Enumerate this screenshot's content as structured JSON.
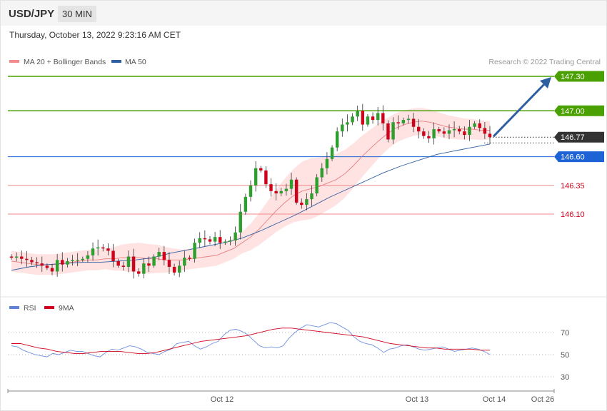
{
  "header": {
    "pair": "USD/JPY",
    "timeframe": "30 MIN",
    "datetime": "Thursday, October 13, 2022 9:23:16 AM CET"
  },
  "legend": {
    "ma20_label": "MA 20 + Bollinger Bands",
    "ma50_label": "MA 50",
    "copyright": "Research © 2022 Trading Central"
  },
  "rsi_legend": {
    "rsi_label": "RSI",
    "ma9_label": "9MA"
  },
  "colors": {
    "bull": "#2e9e2e",
    "bear": "#d0021b",
    "bands_fill": "#ffd6d6",
    "ma20": "#e88080",
    "ma50": "#2e5fa0",
    "resistance": "#4aa000",
    "current": "#333333",
    "pivot": "#1d63d6",
    "support": "#f08a8a",
    "support_text": "#d0021b",
    "rsi": "#6f8fe0",
    "ma9": "#d0021b",
    "arrow": "#2e5fa0"
  },
  "chart_data": [
    {
      "type": "candlestick",
      "title": "",
      "ylim": [
        146.0,
        147.4
      ],
      "current_price": 146.77,
      "levels": [
        {
          "label": "147.30",
          "value": 147.3,
          "kind": "resistance"
        },
        {
          "label": "147.00",
          "value": 147.0,
          "kind": "resistance"
        },
        {
          "label": "146.77",
          "value": 146.77,
          "kind": "current"
        },
        {
          "label": "146.60",
          "value": 146.6,
          "kind": "pivot"
        },
        {
          "label": "146.35",
          "value": 146.35,
          "kind": "support"
        },
        {
          "label": "146.10",
          "value": 146.1,
          "kind": "support"
        }
      ],
      "arrow": {
        "from": 146.77,
        "to": 147.3
      },
      "x_ticks": [
        "Oct 12",
        "Oct 13",
        "Oct 14",
        "Oct 26"
      ],
      "closes": [
        145.72,
        145.73,
        145.71,
        145.7,
        145.68,
        145.67,
        145.65,
        145.63,
        145.6,
        145.7,
        145.66,
        145.69,
        145.7,
        145.7,
        145.71,
        145.74,
        145.8,
        145.81,
        145.8,
        145.78,
        145.69,
        145.65,
        145.64,
        145.73,
        145.6,
        145.58,
        145.67,
        145.65,
        145.73,
        145.77,
        145.7,
        145.64,
        145.59,
        145.65,
        145.72,
        145.71,
        145.85,
        145.89,
        145.88,
        145.86,
        145.9,
        145.85,
        145.86,
        145.87,
        145.94,
        146.12,
        146.25,
        146.35,
        146.5,
        146.48,
        146.36,
        146.3,
        146.28,
        146.3,
        146.32,
        146.4,
        146.2,
        146.18,
        146.23,
        146.28,
        146.42,
        146.5,
        146.58,
        146.68,
        146.82,
        146.88,
        146.9,
        146.95,
        147.0,
        146.88,
        146.95,
        146.92,
        146.98,
        146.89,
        146.75,
        146.9,
        146.89,
        146.92,
        146.93,
        146.86,
        146.82,
        146.78,
        146.76,
        146.84,
        146.82,
        146.8,
        146.83,
        146.84,
        146.82,
        146.79,
        146.86,
        146.89,
        146.85,
        146.8,
        146.77
      ],
      "ma20": [
        145.69,
        145.68,
        145.67,
        145.66,
        145.66,
        145.66,
        145.67,
        145.68,
        145.69,
        145.7,
        145.7,
        145.71,
        145.71,
        145.72,
        145.72,
        145.72,
        145.71,
        145.71,
        145.7,
        145.7,
        145.7,
        145.71,
        145.72,
        145.73,
        145.74,
        145.77,
        145.8,
        145.85,
        145.9,
        145.97,
        146.05,
        146.13,
        146.2,
        146.26,
        146.3,
        146.32,
        146.34,
        146.37,
        146.4,
        146.45,
        146.52,
        146.6,
        146.67,
        146.74,
        146.8,
        146.85,
        146.88,
        146.9,
        146.91,
        146.9,
        146.88,
        146.86,
        146.85,
        146.84,
        146.84,
        146.83,
        146.83
      ],
      "ma50": [
        145.61,
        145.64,
        145.66,
        145.67,
        145.68,
        145.68,
        145.69,
        145.7,
        145.72,
        145.76,
        145.79,
        145.82,
        145.85,
        145.89,
        145.95,
        146.02,
        146.09,
        146.17,
        146.25,
        146.32,
        146.39,
        146.46,
        146.52,
        146.57,
        146.62,
        146.65,
        146.68,
        146.71
      ]
    },
    {
      "type": "line",
      "title": "RSI",
      "ylim": [
        20,
        80
      ],
      "y_ticks": [
        70,
        50,
        30
      ],
      "series": [
        {
          "name": "RSI",
          "values": [
            58,
            57,
            54,
            52,
            50,
            49,
            48,
            51,
            50,
            52,
            54,
            53,
            53,
            51,
            49,
            48,
            52,
            55,
            54,
            56,
            58,
            57,
            55,
            52,
            51,
            50,
            53,
            55,
            60,
            61,
            62,
            58,
            55,
            57,
            60,
            62,
            68,
            72,
            73,
            71,
            68,
            63,
            58,
            56,
            57,
            56,
            58,
            65,
            70,
            74,
            77,
            76,
            75,
            77,
            79,
            78,
            75,
            72,
            66,
            62,
            60,
            59,
            56,
            52,
            55,
            56,
            58,
            59,
            57,
            55,
            54,
            55,
            56,
            57,
            55,
            53,
            54,
            55,
            56,
            55,
            53,
            50
          ]
        },
        {
          "name": "9MA",
          "values": [
            60,
            60,
            58,
            56,
            55,
            53,
            52,
            51,
            51,
            52,
            53,
            53,
            53,
            52,
            51,
            51,
            52,
            54,
            56,
            58,
            60,
            62,
            63,
            64,
            65,
            66,
            67,
            69,
            71,
            73,
            74,
            74,
            73,
            72,
            71,
            70,
            69,
            68,
            67,
            66,
            64,
            62,
            60,
            59,
            58,
            57,
            56,
            56,
            55,
            55,
            55,
            55,
            54,
            54
          ]
        }
      ]
    }
  ]
}
